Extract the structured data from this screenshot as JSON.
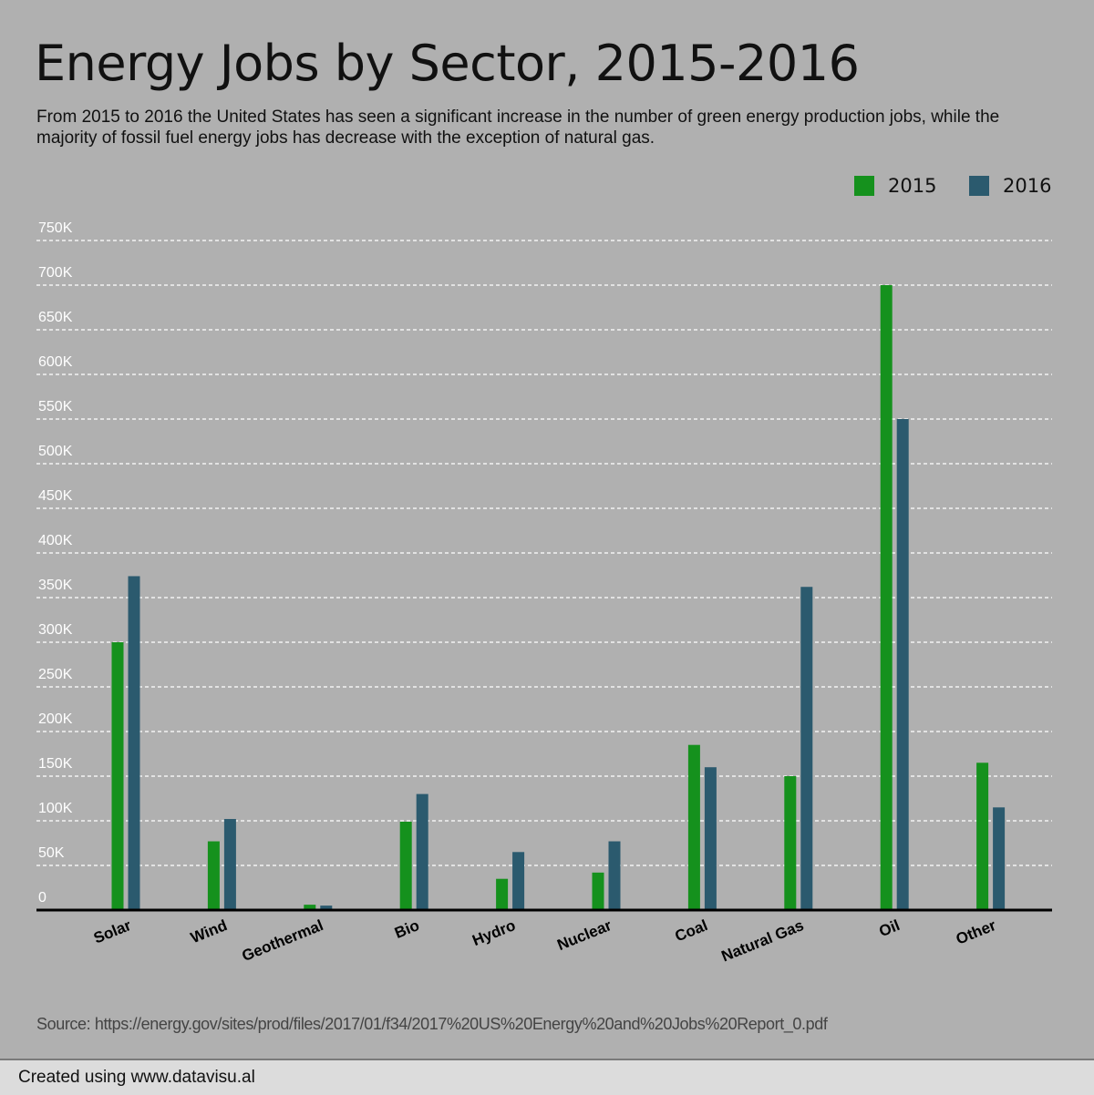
{
  "header": {
    "title": "Energy Jobs by Sector, 2015-2016",
    "subtitle": "From 2015 to 2016 the United States has seen a significant increase in the number of green energy production jobs, while the majority of fossil fuel energy jobs has decrease with the exception of natural gas."
  },
  "colors": {
    "s2015": "#15911d",
    "s2016": "#2b5a6e",
    "grid": "#ffffff",
    "axis": "#000000"
  },
  "chart_data": {
    "type": "bar",
    "title": "Energy Jobs by Sector, 2015-2016",
    "xlabel": "",
    "ylabel": "",
    "categories": [
      "Solar",
      "Wind",
      "Geothermal",
      "Bio",
      "Hydro",
      "Nuclear",
      "Coal",
      "Natural Gas",
      "Oil",
      "Other"
    ],
    "series": [
      {
        "name": "2015",
        "values": [
          300000,
          77000,
          6000,
          99000,
          35000,
          42000,
          185000,
          150000,
          700000,
          165000
        ]
      },
      {
        "name": "2016",
        "values": [
          374000,
          102000,
          5000,
          130000,
          65000,
          77000,
          160000,
          362000,
          550000,
          115000
        ]
      }
    ],
    "ylim": [
      0,
      750000
    ],
    "yticks": [
      0,
      50000,
      100000,
      150000,
      200000,
      250000,
      300000,
      350000,
      400000,
      450000,
      500000,
      550000,
      600000,
      650000,
      700000,
      750000
    ],
    "ytick_labels": [
      "0",
      "50K",
      "100K",
      "150K",
      "200K",
      "250K",
      "300K",
      "350K",
      "400K",
      "450K",
      "500K",
      "550K",
      "600K",
      "650K",
      "700K",
      "750K"
    ],
    "grid": true,
    "legend": "top-right"
  },
  "source": "Source: https://energy.gov/sites/prod/files/2017/01/f34/2017%20US%20Energy%20and%20Jobs%20Report_0.pdf",
  "footer": "Created using www.datavisu.al"
}
